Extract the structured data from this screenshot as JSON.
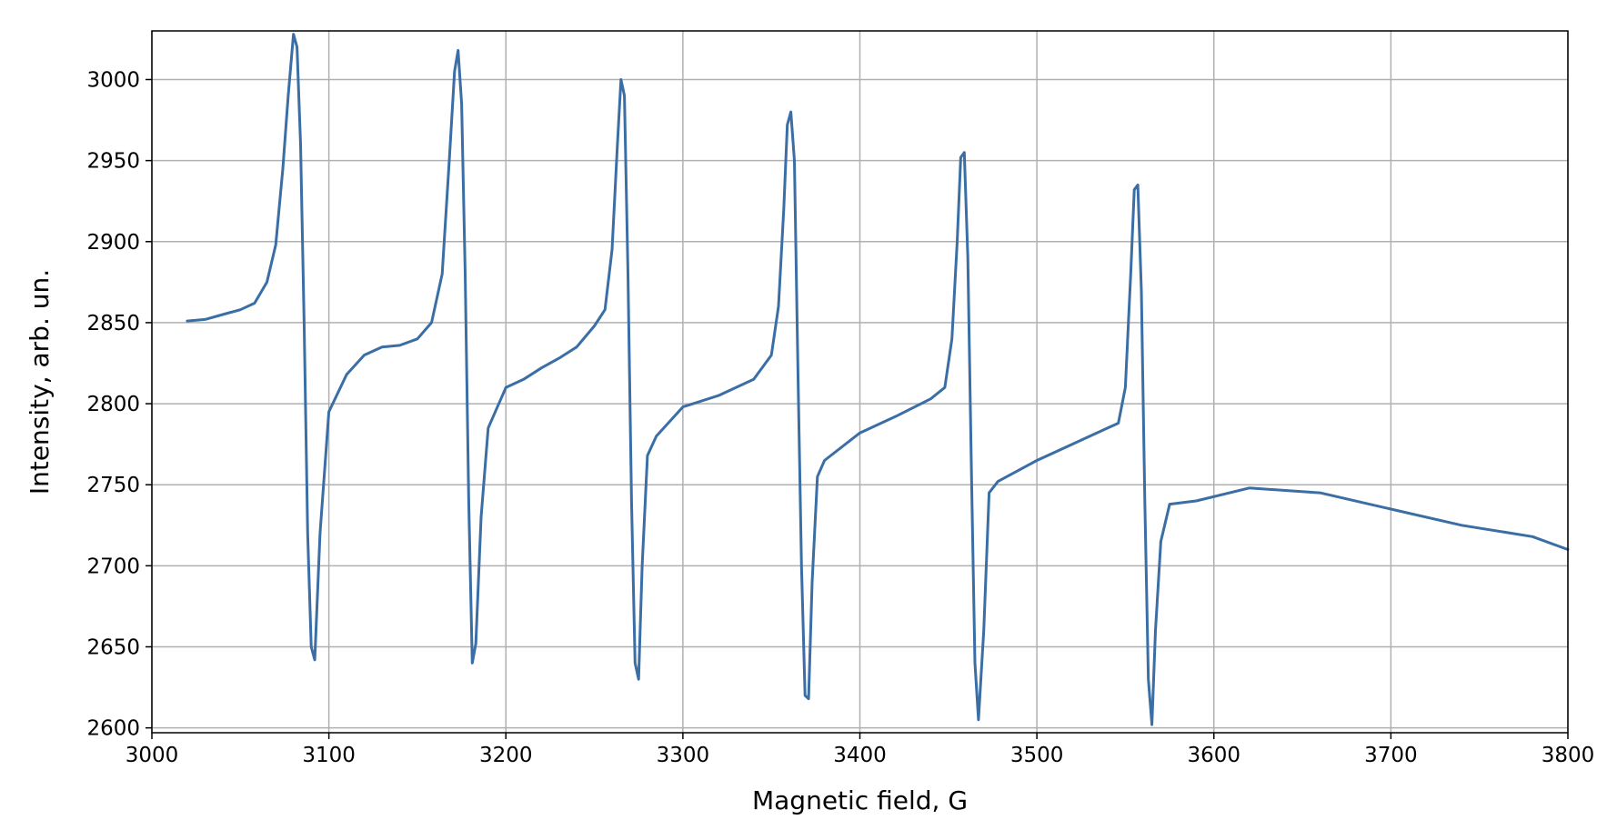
{
  "chart_data": {
    "type": "line",
    "title": "",
    "xlabel": "Magnetic field, G",
    "ylabel": "Intensity, arb. un.",
    "xlim": [
      3000,
      3800
    ],
    "ylim": [
      2597,
      3030
    ],
    "x_ticks": [
      3000,
      3100,
      3200,
      3300,
      3400,
      3500,
      3600,
      3700,
      3800
    ],
    "y_ticks": [
      2600,
      2650,
      2700,
      2750,
      2800,
      2850,
      2900,
      2950,
      3000
    ],
    "grid": true,
    "legend": "none",
    "line_color": "#3a6ea5",
    "series": [
      {
        "x": [
          3020,
          3030,
          3040,
          3050,
          3058,
          3065,
          3070,
          3074,
          3077,
          3080,
          3082,
          3084,
          3086,
          3088,
          3090,
          3092,
          3095,
          3100,
          3110,
          3120,
          3130,
          3140,
          3150,
          3158,
          3164,
          3168,
          3171,
          3173,
          3175,
          3177,
          3179,
          3181,
          3183,
          3186,
          3190,
          3200,
          3210,
          3220,
          3230,
          3240,
          3250,
          3256,
          3260,
          3263,
          3265,
          3267,
          3269,
          3271,
          3273,
          3275,
          3277,
          3280,
          3285,
          3300,
          3320,
          3340,
          3350,
          3354,
          3357,
          3359,
          3361,
          3363,
          3365,
          3367,
          3369,
          3371,
          3373,
          3376,
          3380,
          3400,
          3420,
          3440,
          3448,
          3452,
          3455,
          3457,
          3459,
          3461,
          3463,
          3465,
          3467,
          3470,
          3473,
          3478,
          3500,
          3520,
          3540,
          3546,
          3550,
          3553,
          3555,
          3557,
          3559,
          3561,
          3563,
          3565,
          3567,
          3570,
          3575,
          3590,
          3620,
          3660,
          3700,
          3740,
          3780,
          3800
        ],
        "values": [
          2851,
          2852,
          2855,
          2858,
          2862,
          2875,
          2898,
          2945,
          2990,
          3028,
          3020,
          2960,
          2850,
          2720,
          2650,
          2642,
          2720,
          2795,
          2818,
          2830,
          2835,
          2836,
          2840,
          2850,
          2880,
          2950,
          3005,
          3018,
          2985,
          2880,
          2740,
          2640,
          2652,
          2730,
          2785,
          2810,
          2815,
          2822,
          2828,
          2835,
          2848,
          2858,
          2895,
          2960,
          3000,
          2990,
          2880,
          2740,
          2640,
          2630,
          2700,
          2768,
          2780,
          2798,
          2805,
          2815,
          2830,
          2860,
          2920,
          2972,
          2980,
          2950,
          2820,
          2700,
          2620,
          2618,
          2690,
          2755,
          2765,
          2782,
          2792,
          2803,
          2810,
          2840,
          2900,
          2952,
          2955,
          2890,
          2760,
          2640,
          2605,
          2660,
          2745,
          2752,
          2765,
          2775,
          2785,
          2788,
          2810,
          2880,
          2932,
          2935,
          2870,
          2740,
          2630,
          2602,
          2660,
          2715,
          2738,
          2740,
          2748,
          2745,
          2735,
          2725,
          2718,
          2710
        ]
      }
    ]
  }
}
